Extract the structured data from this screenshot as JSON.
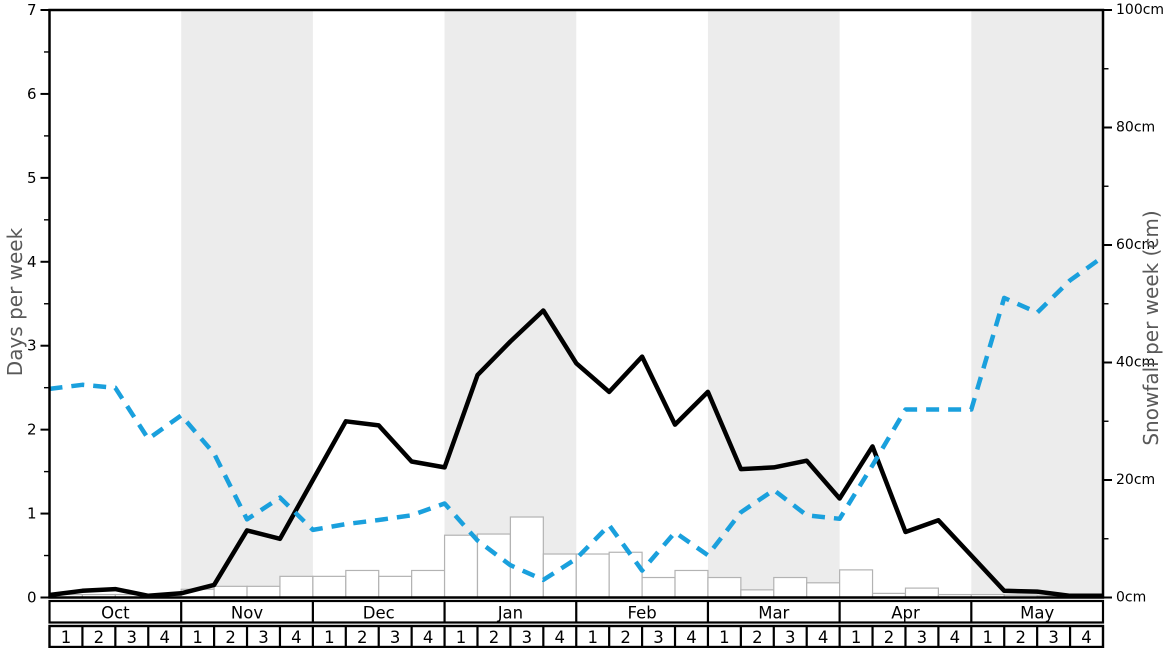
{
  "chart_data": {
    "type": "line",
    "title": "",
    "ylabel_left": "Days per week",
    "ylabel_right": "Snowfall per week (cm)",
    "months": [
      "Oct",
      "Nov",
      "Dec",
      "Jan",
      "Feb",
      "Mar",
      "Apr",
      "May"
    ],
    "week_labels": [
      "1",
      "2",
      "3",
      "4"
    ],
    "shaded_months": [
      "Nov",
      "Jan",
      "Mar",
      "May"
    ],
    "band_color": "#ececec",
    "left_axis": {
      "min": 0,
      "max": 7,
      "major_step": 1,
      "minor_step": 0.5,
      "tick_labels": [
        "0",
        "1",
        "2",
        "3",
        "4",
        "5",
        "6",
        "7"
      ]
    },
    "right_axis": {
      "min": 0,
      "max": 100,
      "major_step": 20,
      "minor_step": 10,
      "tick_labels": [
        "0cm",
        "20cm",
        "40cm",
        "60cm",
        "80cm",
        "100cm"
      ]
    },
    "series": [
      {
        "name": "snow-days-per-week",
        "axis": "left",
        "line_style": "solid",
        "color": "#000000",
        "values": [
          0.03,
          0.08,
          0.1,
          0.02,
          0.05,
          0.15,
          0.8,
          0.7,
          1.4,
          2.1,
          2.05,
          1.62,
          1.55,
          2.65,
          3.05,
          3.42,
          2.79,
          2.45,
          2.87,
          2.06,
          2.45,
          1.53,
          1.55,
          1.63,
          1.18,
          1.8,
          0.78,
          0.92,
          0.5,
          0.08,
          0.07,
          0.02,
          0.02
        ]
      },
      {
        "name": "snowfall-per-week-cm",
        "axis": "right",
        "line_style": "dashed",
        "color": "#1aa0dd",
        "values": [
          35.5,
          36.2,
          35.7,
          27,
          31,
          24.5,
          13.3,
          17,
          11.5,
          12.5,
          13.2,
          14,
          16,
          9.7,
          5.5,
          3,
          6.6,
          12.3,
          4.6,
          11.1,
          7.2,
          14.5,
          18.3,
          14,
          13.4,
          22.5,
          32,
          32,
          32,
          51,
          48.5,
          54,
          58
        ]
      }
    ],
    "bars": {
      "name": "weekly-snowfall-bars",
      "axis": "right",
      "fill_color": "#ffffff",
      "border_color": "#b3b3b3",
      "values": [
        0.5,
        0.5,
        0.5,
        0.3,
        1.4,
        1.9,
        1.9,
        3.6,
        3.6,
        4.6,
        3.6,
        4.6,
        10.6,
        10.8,
        13.7,
        7.4,
        7.4,
        7.7,
        3.4,
        4.6,
        3.4,
        1.3,
        3.4,
        2.5,
        4.7,
        0.7,
        1.6,
        0.5,
        0.5,
        0.4,
        0.3,
        0.3
      ]
    }
  }
}
